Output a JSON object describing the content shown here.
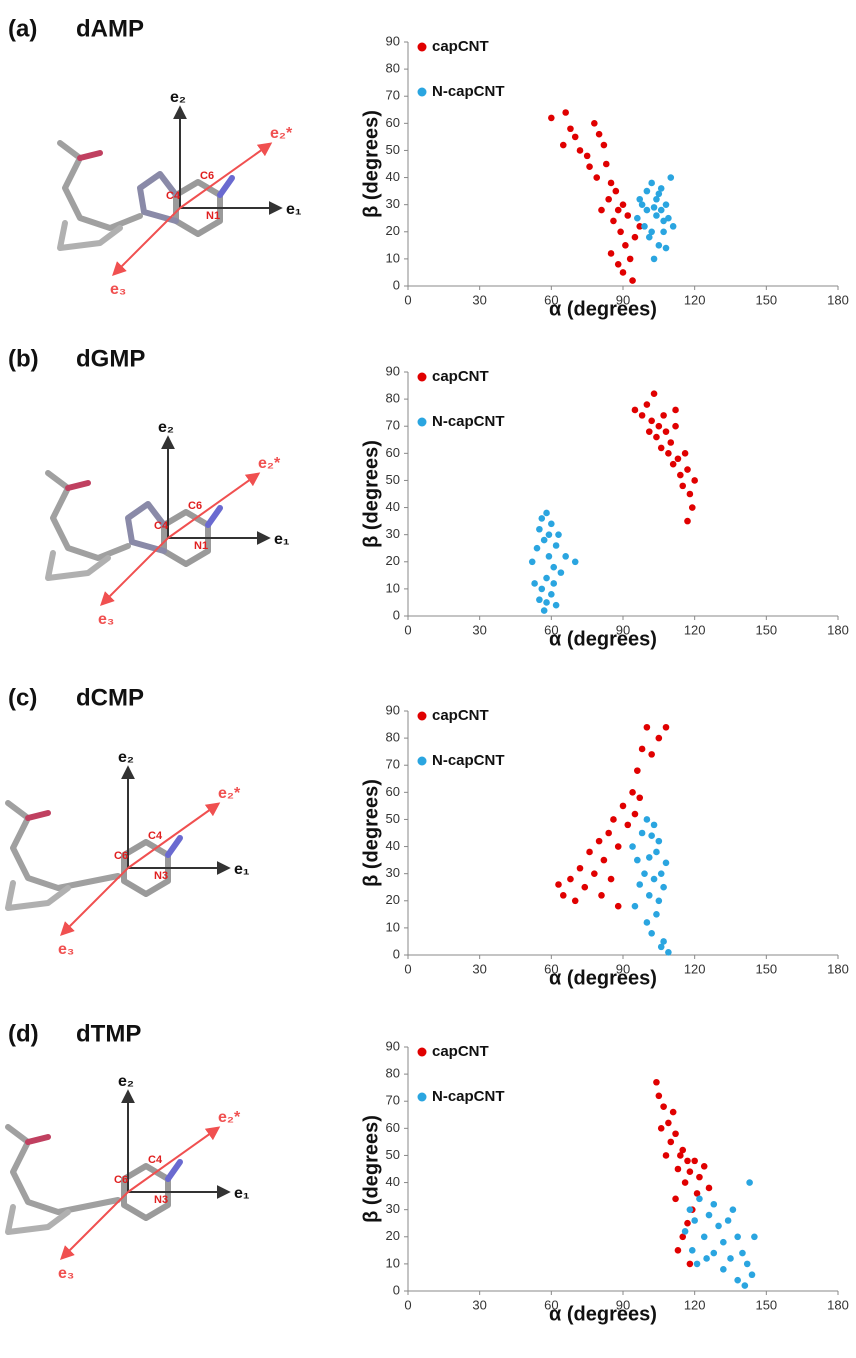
{
  "chart_data": [
    {
      "type": "scatter",
      "label": "(a)",
      "title": "dAMP",
      "structure_labels": [
        "e₂",
        "e₁",
        "e₂*",
        "e₃",
        "C4",
        "C6",
        "N1"
      ],
      "xlabel": "α (degrees)",
      "ylabel": "β (degrees)",
      "xlim": [
        0,
        180
      ],
      "ylim": [
        0,
        90
      ],
      "xticks": [
        0,
        30,
        60,
        90,
        120,
        150,
        180
      ],
      "yticks": [
        0,
        10,
        20,
        30,
        40,
        50,
        60,
        70,
        80,
        90
      ],
      "series": [
        {
          "name": "capCNT",
          "color": "#e00000",
          "x": [
            60,
            66,
            68,
            65,
            70,
            72,
            75,
            78,
            80,
            82,
            76,
            79,
            83,
            85,
            84,
            87,
            88,
            86,
            90,
            92,
            89,
            91,
            93,
            90,
            94,
            95,
            97,
            81,
            85,
            88
          ],
          "values": [
            62,
            64,
            58,
            52,
            55,
            50,
            48,
            60,
            56,
            52,
            44,
            40,
            45,
            38,
            32,
            35,
            28,
            24,
            30,
            26,
            20,
            15,
            10,
            5,
            2,
            18,
            22,
            28,
            12,
            8
          ]
        },
        {
          "name": "N-capCNT",
          "color": "#2aa5e0",
          "x": [
            96,
            98,
            100,
            102,
            104,
            106,
            108,
            110,
            109,
            107,
            105,
            103,
            101,
            99,
            104,
            106,
            108,
            111,
            100,
            102,
            105,
            97,
            103,
            107
          ],
          "values": [
            25,
            30,
            35,
            38,
            32,
            36,
            30,
            40,
            25,
            20,
            15,
            10,
            18,
            22,
            26,
            28,
            14,
            22,
            28,
            20,
            34,
            32,
            29,
            24
          ]
        }
      ]
    },
    {
      "type": "scatter",
      "label": "(b)",
      "title": "dGMP",
      "structure_labels": [
        "e₂",
        "e₁",
        "e₂*",
        "e₃",
        "C4",
        "C6",
        "N1"
      ],
      "xlabel": "α (degrees)",
      "ylabel": "β (degrees)",
      "xlim": [
        0,
        180
      ],
      "ylim": [
        0,
        90
      ],
      "xticks": [
        0,
        30,
        60,
        90,
        120,
        150,
        180
      ],
      "yticks": [
        0,
        10,
        20,
        30,
        40,
        50,
        60,
        70,
        80,
        90
      ],
      "series": [
        {
          "name": "capCNT",
          "color": "#e00000",
          "x": [
            95,
            98,
            100,
            102,
            103,
            105,
            104,
            107,
            108,
            106,
            110,
            112,
            113,
            111,
            114,
            116,
            115,
            117,
            118,
            120,
            119,
            117,
            109,
            112,
            101
          ],
          "values": [
            76,
            74,
            78,
            72,
            82,
            70,
            66,
            74,
            68,
            62,
            64,
            70,
            58,
            56,
            52,
            60,
            48,
            54,
            45,
            50,
            40,
            35,
            60,
            76,
            68
          ]
        },
        {
          "name": "N-capCNT",
          "color": "#2aa5e0",
          "x": [
            52,
            54,
            55,
            56,
            58,
            60,
            57,
            59,
            61,
            62,
            63,
            58,
            56,
            60,
            62,
            57,
            55,
            53,
            64,
            66,
            70,
            59,
            61,
            58
          ],
          "values": [
            20,
            25,
            32,
            36,
            38,
            34,
            28,
            22,
            18,
            26,
            30,
            14,
            10,
            8,
            4,
            2,
            6,
            12,
            16,
            22,
            20,
            30,
            12,
            5
          ]
        }
      ]
    },
    {
      "type": "scatter",
      "label": "(c)",
      "title": "dCMP",
      "structure_labels": [
        "e₂",
        "e₁",
        "e₂*",
        "e₃",
        "C6",
        "C4",
        "N3"
      ],
      "xlabel": "α (degrees)",
      "ylabel": "β (degrees)",
      "xlim": [
        0,
        180
      ],
      "ylim": [
        0,
        90
      ],
      "xticks": [
        0,
        30,
        60,
        90,
        120,
        150,
        180
      ],
      "yticks": [
        0,
        10,
        20,
        30,
        40,
        50,
        60,
        70,
        80,
        90
      ],
      "series": [
        {
          "name": "capCNT",
          "color": "#e00000",
          "x": [
            63,
            65,
            68,
            70,
            72,
            74,
            76,
            78,
            80,
            82,
            84,
            85,
            86,
            88,
            90,
            92,
            94,
            95,
            97,
            96,
            98,
            100,
            102,
            105,
            108,
            88,
            81
          ],
          "values": [
            26,
            22,
            28,
            20,
            32,
            25,
            38,
            30,
            42,
            35,
            45,
            28,
            50,
            40,
            55,
            48,
            60,
            52,
            58,
            68,
            76,
            84,
            74,
            80,
            84,
            18,
            22
          ]
        },
        {
          "name": "N-capCNT",
          "color": "#2aa5e0",
          "x": [
            94,
            96,
            98,
            100,
            102,
            104,
            106,
            108,
            107,
            105,
            103,
            101,
            99,
            97,
            95,
            100,
            102,
            104,
            106,
            107,
            109,
            103,
            101,
            105
          ],
          "values": [
            40,
            35,
            45,
            50,
            44,
            38,
            30,
            34,
            25,
            20,
            28,
            22,
            30,
            26,
            18,
            12,
            8,
            15,
            3,
            5,
            1,
            48,
            36,
            42
          ]
        }
      ]
    },
    {
      "type": "scatter",
      "label": "(d)",
      "title": "dTMP",
      "structure_labels": [
        "e₂",
        "e₁",
        "e₂*",
        "e₃",
        "C6",
        "C4",
        "N3"
      ],
      "xlabel": "α (degrees)",
      "ylabel": "β (degrees)",
      "xlim": [
        0,
        180
      ],
      "ylim": [
        0,
        90
      ],
      "xticks": [
        0,
        30,
        60,
        90,
        120,
        150,
        180
      ],
      "yticks": [
        0,
        10,
        20,
        30,
        40,
        50,
        60,
        70,
        80,
        90
      ],
      "series": [
        {
          "name": "capCNT",
          "color": "#e00000",
          "x": [
            104,
            105,
            107,
            106,
            109,
            111,
            110,
            112,
            114,
            113,
            115,
            117,
            116,
            118,
            120,
            122,
            124,
            121,
            119,
            117,
            115,
            113,
            118,
            112,
            126,
            108
          ],
          "values": [
            77,
            72,
            68,
            60,
            62,
            66,
            55,
            58,
            50,
            45,
            52,
            48,
            40,
            44,
            48,
            42,
            46,
            36,
            30,
            25,
            20,
            15,
            10,
            34,
            38,
            50
          ]
        },
        {
          "name": "N-capCNT",
          "color": "#2aa5e0",
          "x": [
            116,
            118,
            120,
            122,
            124,
            126,
            128,
            130,
            132,
            134,
            136,
            138,
            140,
            142,
            144,
            141,
            138,
            135,
            132,
            128,
            125,
            121,
            119,
            143,
            145
          ],
          "values": [
            22,
            30,
            26,
            34,
            20,
            28,
            32,
            24,
            18,
            26,
            30,
            20,
            14,
            10,
            6,
            2,
            4,
            12,
            8,
            14,
            12,
            10,
            15,
            40,
            20
          ]
        }
      ]
    }
  ]
}
